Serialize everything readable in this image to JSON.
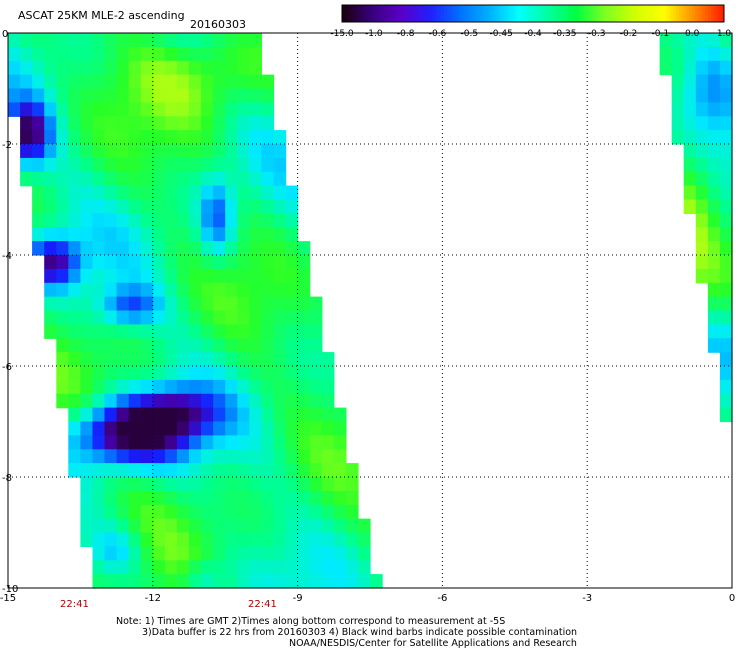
{
  "header": {
    "title": "ASCAT 25KM MLE-2 ascending",
    "date": "20160303"
  },
  "colorbar": {
    "labels": [
      "-15.0",
      "-1.0",
      "-0.8",
      "-0.6",
      "-0.5",
      "-0.45",
      "-0.4",
      "-0.35",
      "-0.3",
      "-0.2",
      "-0.1",
      "0.0",
      "1.0"
    ],
    "colors": [
      "#1a0010",
      "#3a0080",
      "#5a00c8",
      "#2020ff",
      "#0070ff",
      "#00b0ff",
      "#00ffff",
      "#00ffa0",
      "#00ff40",
      "#80ff20",
      "#d0ff00",
      "#ffff00",
      "#ff9000",
      "#ff2000"
    ]
  },
  "chart_data": {
    "type": "heatmap",
    "title": "ASCAT 25KM MLE-2 ascending",
    "subtitle": "20160303",
    "x_ticks": [
      "-15",
      "-12",
      "-9",
      "-6",
      "-3",
      "0"
    ],
    "y_ticks": [
      "0",
      "-2",
      "-4",
      "-6",
      "-8",
      "-10"
    ],
    "xlim": [
      -15,
      0
    ],
    "ylim": [
      -10,
      0
    ],
    "grid": true,
    "colorbar_labels": [
      "-15.0",
      "-1.0",
      "-0.8",
      "-0.6",
      "-0.5",
      "-0.45",
      "-0.4",
      "-0.35",
      "-0.3",
      "-0.2",
      "-0.1",
      "0.0",
      "1.0"
    ],
    "swaths": [
      {
        "lat": [
          0,
          -10
        ],
        "lon_west_edge": [
          -15,
          -13.1
        ],
        "lon_east_edge": [
          -9.9,
          -7.4
        ]
      },
      {
        "lat": [
          0,
          -6.8
        ],
        "lon_west_edge": [
          -1.4,
          0
        ],
        "lon_east_edge": [
          0,
          0
        ]
      }
    ]
  },
  "time_labels": [
    "22:41",
    "22:41"
  ],
  "notes": {
    "line1": "Note: 1) Times are GMT 2)Times along bottom correspond to measurement at -5S",
    "line2": "3)Data buffer is 22 hrs from 20160303 4) Black wind barbs indicate possible contamination",
    "line3": "NOAA/NESDIS/Center for Satellite Applications and Research"
  }
}
